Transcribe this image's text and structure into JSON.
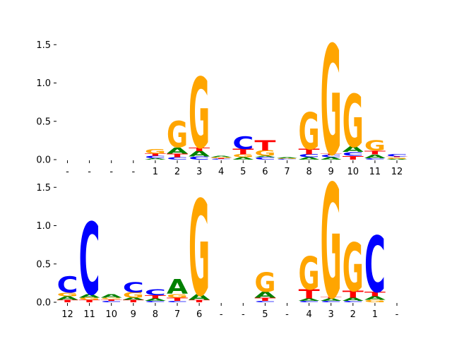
{
  "chart_data": [
    {
      "type": "sequence-logo",
      "ylim": [
        0,
        1.6
      ],
      "yticks": [
        0.0,
        0.5,
        1.0,
        1.5
      ],
      "ytick_labels": [
        "0.0",
        "0.5",
        "1.0",
        "1.5"
      ],
      "xtick_labels": [
        "-",
        "-",
        "-",
        "-",
        "1",
        "2",
        "3",
        "4",
        "5",
        "6",
        "7",
        "8",
        "9",
        "10",
        "11",
        "12"
      ],
      "colors": {
        "A": "#008000",
        "C": "#0000ff",
        "G": "#ffa500",
        "T": "#ff0000"
      },
      "positions": [
        [],
        [],
        [],
        [],
        [
          [
            "A",
            0.02
          ],
          [
            "C",
            0.03
          ],
          [
            "T",
            0.03
          ],
          [
            "G",
            0.06
          ]
        ],
        [
          [
            "C",
            0.03
          ],
          [
            "T",
            0.05
          ],
          [
            "A",
            0.08
          ],
          [
            "G",
            0.34
          ]
        ],
        [
          [
            "C",
            0.04
          ],
          [
            "A",
            0.07
          ],
          [
            "T",
            0.05
          ],
          [
            "G",
            0.92
          ]
        ],
        [
          [
            "C",
            0.01
          ],
          [
            "T",
            0.01
          ],
          [
            "G",
            0.01
          ],
          [
            "A",
            0.02
          ]
        ],
        [
          [
            "A",
            0.03
          ],
          [
            "G",
            0.04
          ],
          [
            "T",
            0.07
          ],
          [
            "C",
            0.17
          ]
        ],
        [
          [
            "C",
            0.03
          ],
          [
            "A",
            0.02
          ],
          [
            "G",
            0.07
          ],
          [
            "T",
            0.13
          ]
        ],
        [
          [
            "C",
            0.01
          ],
          [
            "G",
            0.01
          ],
          [
            "A",
            0.01
          ]
        ],
        [
          [
            "A",
            0.03
          ],
          [
            "C",
            0.04
          ],
          [
            "T",
            0.07
          ],
          [
            "G",
            0.48
          ]
        ],
        [
          [
            "A",
            0.03
          ],
          [
            "C",
            0.03
          ],
          [
            "T",
            0.02
          ],
          [
            "G",
            1.43
          ]
        ],
        [
          [
            "T",
            0.05
          ],
          [
            "C",
            0.05
          ],
          [
            "A",
            0.07
          ],
          [
            "G",
            0.69
          ]
        ],
        [
          [
            "C",
            0.02
          ],
          [
            "A",
            0.05
          ],
          [
            "T",
            0.05
          ],
          [
            "G",
            0.13
          ]
        ],
        [
          [
            "A",
            0.01
          ],
          [
            "G",
            0.02
          ],
          [
            "T",
            0.01
          ],
          [
            "C",
            0.03
          ]
        ]
      ]
    },
    {
      "type": "sequence-logo",
      "ylim": [
        0,
        1.6
      ],
      "yticks": [
        0.0,
        0.5,
        1.0,
        1.5
      ],
      "ytick_labels": [
        "0.0",
        "0.5",
        "1.0",
        "1.5"
      ],
      "xtick_labels": [
        "12",
        "11",
        "10",
        "9",
        "8",
        "7",
        "6",
        "-",
        "-",
        "5",
        "-",
        "4",
        "3",
        "2",
        "1",
        "-"
      ],
      "colors": {
        "A": "#008000",
        "C": "#0000ff",
        "G": "#ffa500",
        "T": "#ff0000"
      },
      "positions": [
        [
          [
            "T",
            0.03
          ],
          [
            "A",
            0.05
          ],
          [
            "G",
            0.05
          ],
          [
            "C",
            0.21
          ]
        ],
        [
          [
            "T",
            0.03
          ],
          [
            "G",
            0.03
          ],
          [
            "A",
            0.05
          ],
          [
            "C",
            0.94
          ]
        ],
        [
          [
            "C",
            0.02
          ],
          [
            "T",
            0.02
          ],
          [
            "G",
            0.02
          ],
          [
            "A",
            0.05
          ]
        ],
        [
          [
            "T",
            0.03
          ],
          [
            "A",
            0.03
          ],
          [
            "G",
            0.07
          ],
          [
            "C",
            0.13
          ]
        ],
        [
          [
            "C",
            0.02
          ],
          [
            "A",
            0.03
          ],
          [
            "T",
            0.04
          ],
          [
            "C",
            0.08
          ]
        ],
        [
          [
            "C",
            0.02
          ],
          [
            "T",
            0.04
          ],
          [
            "G",
            0.05
          ],
          [
            "A",
            0.19
          ]
        ],
        [
          [
            "T",
            0.03
          ],
          [
            "A",
            0.07
          ],
          [
            "G",
            1.25
          ]
        ],
        [],
        [],
        [
          [
            "C",
            0.02
          ],
          [
            "T",
            0.04
          ],
          [
            "A",
            0.08
          ],
          [
            "G",
            0.25
          ]
        ],
        [],
        [
          [
            "C",
            0.02
          ],
          [
            "A",
            0.03
          ],
          [
            "T",
            0.12
          ],
          [
            "G",
            0.43
          ]
        ],
        [
          [
            "C",
            0.02
          ],
          [
            "A",
            0.03
          ],
          [
            "T",
            0.02
          ],
          [
            "G",
            1.49
          ]
        ],
        [
          [
            "C",
            0.02
          ],
          [
            "A",
            0.04
          ],
          [
            "T",
            0.09
          ],
          [
            "G",
            0.63
          ]
        ],
        [
          [
            "G",
            0.03
          ],
          [
            "A",
            0.05
          ],
          [
            "T",
            0.06
          ],
          [
            "C",
            0.73
          ]
        ],
        []
      ]
    }
  ]
}
